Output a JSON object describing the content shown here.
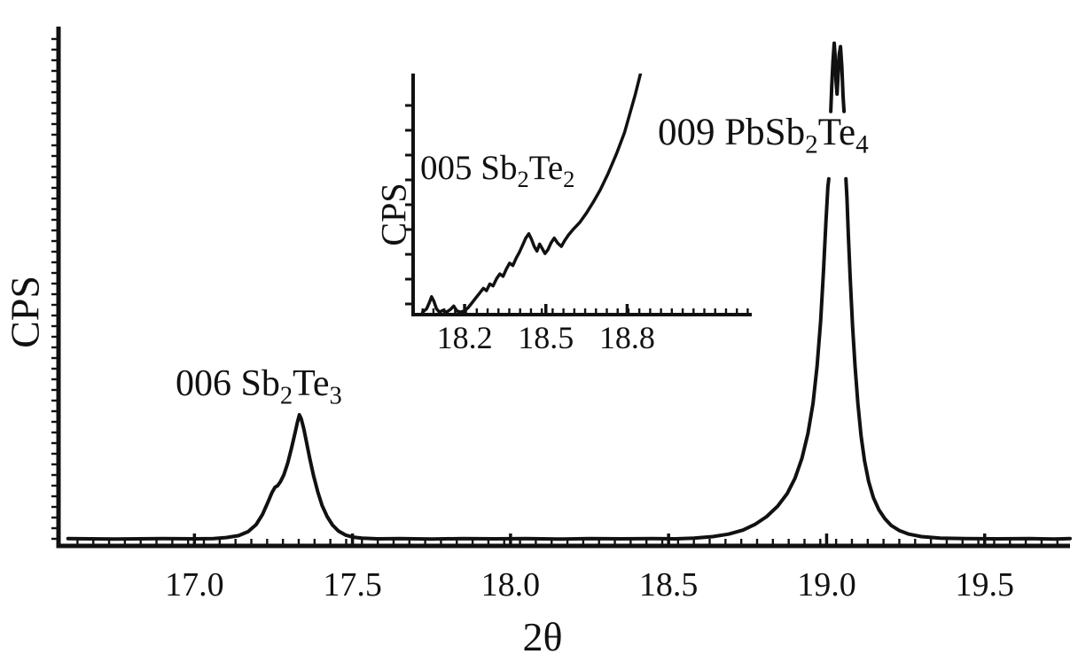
{
  "figure": {
    "background": "#ffffff",
    "line_color": "#111111"
  },
  "chart_data": {
    "type": "line",
    "title": "",
    "description": "X-ray diffraction pattern, counts per second vs diffraction angle, with zoomed inset of the 18.0-18.9 region",
    "xlabel": "2θ",
    "ylabel": "CPS",
    "legend": "none",
    "grid": false,
    "main": {
      "xlim": [
        16.57,
        19.77
      ],
      "ylim": [
        0,
        100
      ],
      "xticks": [
        17.0,
        17.5,
        18.0,
        18.5,
        19.0,
        19.5
      ],
      "xtick_labels": [
        "17.0",
        "17.5",
        "18.0",
        "18.5",
        "19.0",
        "19.5"
      ],
      "ytick_labels": [],
      "y_axis_note": "unlabeled minor ticks only; intensity in arbitrary CPS units, tall peak clipped at top with axis-break notch",
      "segments": [
        [
          [
            16.6,
            0.4
          ],
          [
            16.75,
            0.3
          ],
          [
            16.9,
            0.4
          ],
          [
            17.0,
            0.35
          ],
          [
            17.06,
            0.4
          ],
          [
            17.1,
            0.6
          ],
          [
            17.14,
            1.0
          ],
          [
            17.17,
            1.8
          ],
          [
            17.195,
            3.2
          ],
          [
            17.215,
            5.2
          ],
          [
            17.232,
            7.6
          ],
          [
            17.245,
            9.6
          ],
          [
            17.255,
            10.7
          ],
          [
            17.263,
            11.0
          ],
          [
            17.272,
            11.8
          ],
          [
            17.283,
            13.2
          ],
          [
            17.295,
            15.5
          ],
          [
            17.307,
            18.5
          ],
          [
            17.318,
            21.5
          ],
          [
            17.326,
            23.8
          ],
          [
            17.332,
            25.2
          ],
          [
            17.338,
            24.4
          ],
          [
            17.346,
            22.4
          ],
          [
            17.355,
            19.6
          ],
          [
            17.365,
            16.4
          ],
          [
            17.377,
            13.0
          ],
          [
            17.39,
            9.8
          ],
          [
            17.404,
            7.0
          ],
          [
            17.42,
            4.8
          ],
          [
            17.437,
            3.1
          ],
          [
            17.456,
            1.9
          ],
          [
            17.478,
            1.1
          ],
          [
            17.502,
            0.7
          ],
          [
            17.53,
            0.5
          ],
          [
            17.58,
            0.35
          ],
          [
            17.65,
            0.4
          ],
          [
            17.75,
            0.3
          ],
          [
            17.85,
            0.4
          ],
          [
            17.95,
            0.35
          ],
          [
            18.05,
            0.4
          ],
          [
            18.15,
            0.3
          ],
          [
            18.25,
            0.4
          ],
          [
            18.35,
            0.35
          ],
          [
            18.45,
            0.4
          ],
          [
            18.52,
            0.35
          ],
          [
            18.58,
            0.5
          ],
          [
            18.64,
            0.8
          ],
          [
            18.69,
            1.3
          ],
          [
            18.735,
            2.1
          ],
          [
            18.775,
            3.3
          ],
          [
            18.81,
            4.8
          ],
          [
            18.845,
            6.9
          ],
          [
            18.875,
            9.4
          ],
          [
            18.9,
            12.5
          ],
          [
            18.922,
            16.5
          ],
          [
            18.941,
            21.5
          ],
          [
            18.957,
            27.5
          ],
          [
            18.97,
            35
          ],
          [
            18.981,
            44
          ],
          [
            18.99,
            54
          ],
          [
            18.998,
            64
          ],
          [
            19.004,
            71
          ],
          [
            19.007,
            72.5
          ]
        ],
        [
          [
            19.013,
            86
          ],
          [
            19.016,
            91
          ],
          [
            19.02,
            96
          ],
          [
            19.024,
            99.7
          ],
          [
            19.027,
            97
          ],
          [
            19.03,
            92
          ],
          [
            19.033,
            89.5
          ],
          [
            19.036,
            93
          ],
          [
            19.04,
            97.5
          ],
          [
            19.044,
            99
          ],
          [
            19.048,
            95
          ],
          [
            19.052,
            89
          ],
          [
            19.055,
            86
          ]
        ],
        [
          [
            19.061,
            72.5
          ],
          [
            19.064,
            69
          ],
          [
            19.069,
            61
          ],
          [
            19.075,
            52
          ],
          [
            19.082,
            43
          ],
          [
            19.09,
            35
          ],
          [
            19.099,
            27.5
          ],
          [
            19.109,
            21
          ],
          [
            19.12,
            16
          ],
          [
            19.133,
            11.8
          ],
          [
            19.148,
            8.6
          ],
          [
            19.165,
            6.2
          ],
          [
            19.184,
            4.4
          ],
          [
            19.205,
            3.0
          ],
          [
            19.23,
            2.0
          ],
          [
            19.26,
            1.3
          ],
          [
            19.3,
            0.8
          ],
          [
            19.36,
            0.5
          ],
          [
            19.44,
            0.4
          ],
          [
            19.54,
            0.35
          ],
          [
            19.64,
            0.4
          ],
          [
            19.72,
            0.3
          ],
          [
            19.77,
            0.4
          ]
        ]
      ]
    },
    "inset": {
      "xlim": [
        18.01,
        19.26
      ],
      "ylim": [
        0,
        100
      ],
      "xticks": [
        18.2,
        18.5,
        18.8
      ],
      "xtick_labels": [
        "18.2",
        "18.5",
        "18.8"
      ],
      "ylabel": "CPS",
      "y_axis_note": "unlabeled minor ticks only; curve rises off the top of the inset toward the 009 peak",
      "points": [
        [
          18.045,
          1
        ],
        [
          18.06,
          2.5
        ],
        [
          18.07,
          5
        ],
        [
          18.078,
          7.5
        ],
        [
          18.087,
          5.5
        ],
        [
          18.096,
          2.5
        ],
        [
          18.107,
          1
        ],
        [
          18.12,
          1.8
        ],
        [
          18.133,
          1
        ],
        [
          18.148,
          2.2
        ],
        [
          18.16,
          3.6
        ],
        [
          18.171,
          1.6
        ],
        [
          18.185,
          1
        ],
        [
          18.2,
          1.6
        ],
        [
          18.214,
          3
        ],
        [
          18.228,
          5
        ],
        [
          18.243,
          7.2
        ],
        [
          18.257,
          9.2
        ],
        [
          18.269,
          11
        ],
        [
          18.281,
          10
        ],
        [
          18.293,
          12.8
        ],
        [
          18.305,
          12
        ],
        [
          18.318,
          15
        ],
        [
          18.33,
          17
        ],
        [
          18.342,
          16
        ],
        [
          18.354,
          19
        ],
        [
          18.366,
          21.5
        ],
        [
          18.378,
          20.5
        ],
        [
          18.39,
          23.5
        ],
        [
          18.402,
          26
        ],
        [
          18.414,
          29
        ],
        [
          18.426,
          32
        ],
        [
          18.437,
          33.8
        ],
        [
          18.447,
          31.5
        ],
        [
          18.457,
          28.5
        ],
        [
          18.467,
          26.5
        ],
        [
          18.477,
          29.5
        ],
        [
          18.487,
          27.5
        ],
        [
          18.497,
          25.5
        ],
        [
          18.507,
          27
        ],
        [
          18.519,
          30
        ],
        [
          18.531,
          32
        ],
        [
          18.544,
          29.8
        ],
        [
          18.557,
          28.5
        ],
        [
          18.57,
          31
        ],
        [
          18.583,
          33.2
        ],
        [
          18.6,
          35.5
        ],
        [
          18.625,
          38.5
        ],
        [
          18.65,
          42.5
        ],
        [
          18.675,
          47
        ],
        [
          18.7,
          52
        ],
        [
          18.73,
          59
        ],
        [
          18.76,
          67
        ],
        [
          18.79,
          76
        ],
        [
          18.81,
          84
        ],
        [
          18.83,
          92
        ],
        [
          18.85,
          101
        ],
        [
          18.87,
          111
        ],
        [
          18.89,
          122
        ]
      ]
    },
    "annotations": {
      "peak_006": {
        "text": "006 Sb2Te3",
        "peak_2theta": 17.33,
        "parts": [
          {
            "text": "006 Sb"
          },
          {
            "sub": "2"
          },
          {
            "text": "Te"
          },
          {
            "sub": "3"
          }
        ]
      },
      "peak_009": {
        "text": "009 PbSb2Te4",
        "peak_2theta": 19.03,
        "parts": [
          {
            "text": "009 PbSb"
          },
          {
            "sub": "2"
          },
          {
            "text": "Te"
          },
          {
            "sub": "4"
          }
        ]
      },
      "peak_005": {
        "text": "005 Sb2Te2",
        "peak_2theta": 18.44,
        "parts": [
          {
            "text": "005 Sb"
          },
          {
            "sub": "2"
          },
          {
            "text": "Te"
          },
          {
            "sub": "2"
          }
        ]
      }
    }
  }
}
